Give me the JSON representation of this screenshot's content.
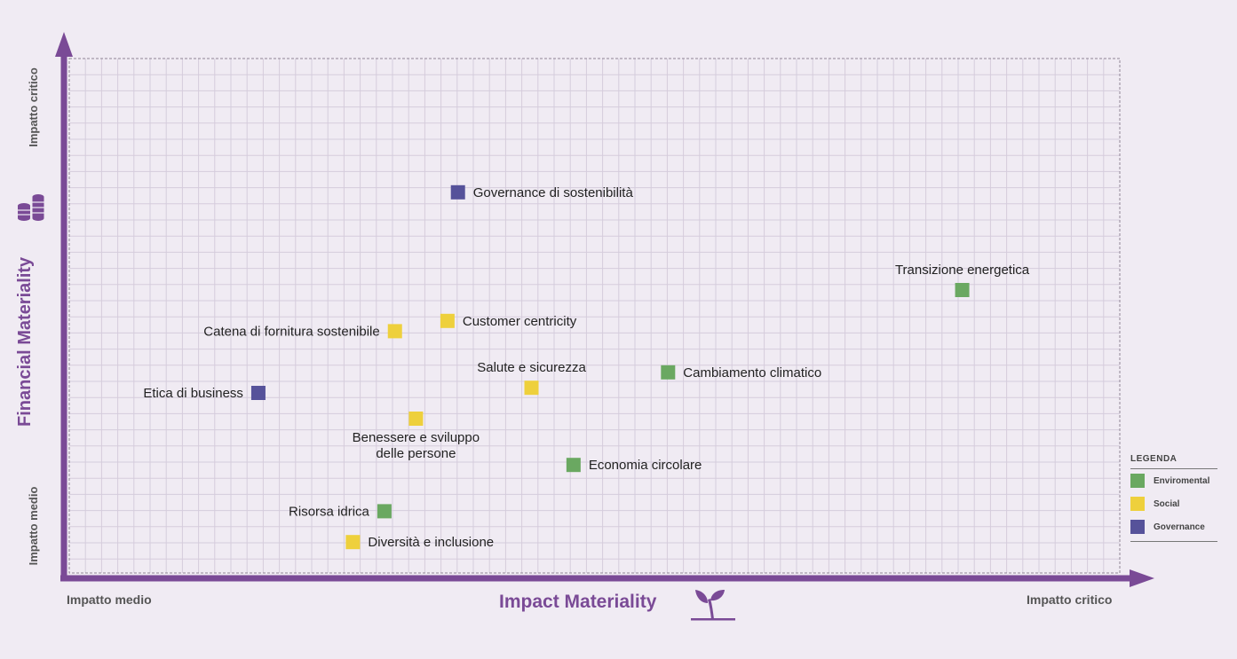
{
  "chart_data": {
    "type": "scatter",
    "xlabel": "Impact Materiality",
    "ylabel": "Financial Materiality",
    "x_axis_ends": {
      "low": "Impatto medio",
      "high": "Impatto critico"
    },
    "y_axis_ends": {
      "low": "Impatto medio",
      "high": "Impatto critico"
    },
    "xlim": [
      0,
      100
    ],
    "ylim": [
      0,
      100
    ],
    "grid": true,
    "legend_position": "bottom-right",
    "legend": {
      "title": "LEGENDA",
      "entries": [
        {
          "key": "env",
          "label": "Enviromental",
          "color": "#6aa861"
        },
        {
          "key": "soc",
          "label": "Social",
          "color": "#eed03c"
        },
        {
          "key": "gov",
          "label": "Governance",
          "color": "#56529a"
        }
      ]
    },
    "points": [
      {
        "label": "Governance di sostenibilità",
        "x": 37,
        "y": 74,
        "category": "gov",
        "label_side": "right"
      },
      {
        "label": "Transizione energetica",
        "x": 85,
        "y": 55,
        "category": "env",
        "label_side": "above"
      },
      {
        "label": "Catena di fornitura sostenibile",
        "x": 31,
        "y": 47,
        "category": "soc",
        "label_side": "left"
      },
      {
        "label": "Customer centricity",
        "x": 36,
        "y": 49,
        "category": "soc",
        "label_side": "right"
      },
      {
        "label": "Salute e sicurezza",
        "x": 44,
        "y": 36,
        "category": "soc",
        "label_side": "above"
      },
      {
        "label": "Cambiamento climatico",
        "x": 57,
        "y": 39,
        "category": "env",
        "label_side": "right"
      },
      {
        "label": "Etica di business",
        "x": 18,
        "y": 35,
        "category": "gov",
        "label_side": "left"
      },
      {
        "label": "Benessere e sviluppo\ndelle persone",
        "x": 33,
        "y": 30,
        "category": "soc",
        "label_side": "below"
      },
      {
        "label": "Economia circolare",
        "x": 48,
        "y": 21,
        "category": "env",
        "label_side": "right"
      },
      {
        "label": "Risorsa idrica",
        "x": 30,
        "y": 12,
        "category": "env",
        "label_side": "left"
      },
      {
        "label": "Diversità e inclusione",
        "x": 27,
        "y": 6,
        "category": "soc",
        "label_side": "right"
      }
    ]
  },
  "icons": {
    "y_axis": "coins-icon",
    "x_axis": "sprout-icon"
  },
  "colors": {
    "axis": "#7a4a96",
    "grid": "#d5ccdc",
    "background": "#f0ebf3"
  }
}
